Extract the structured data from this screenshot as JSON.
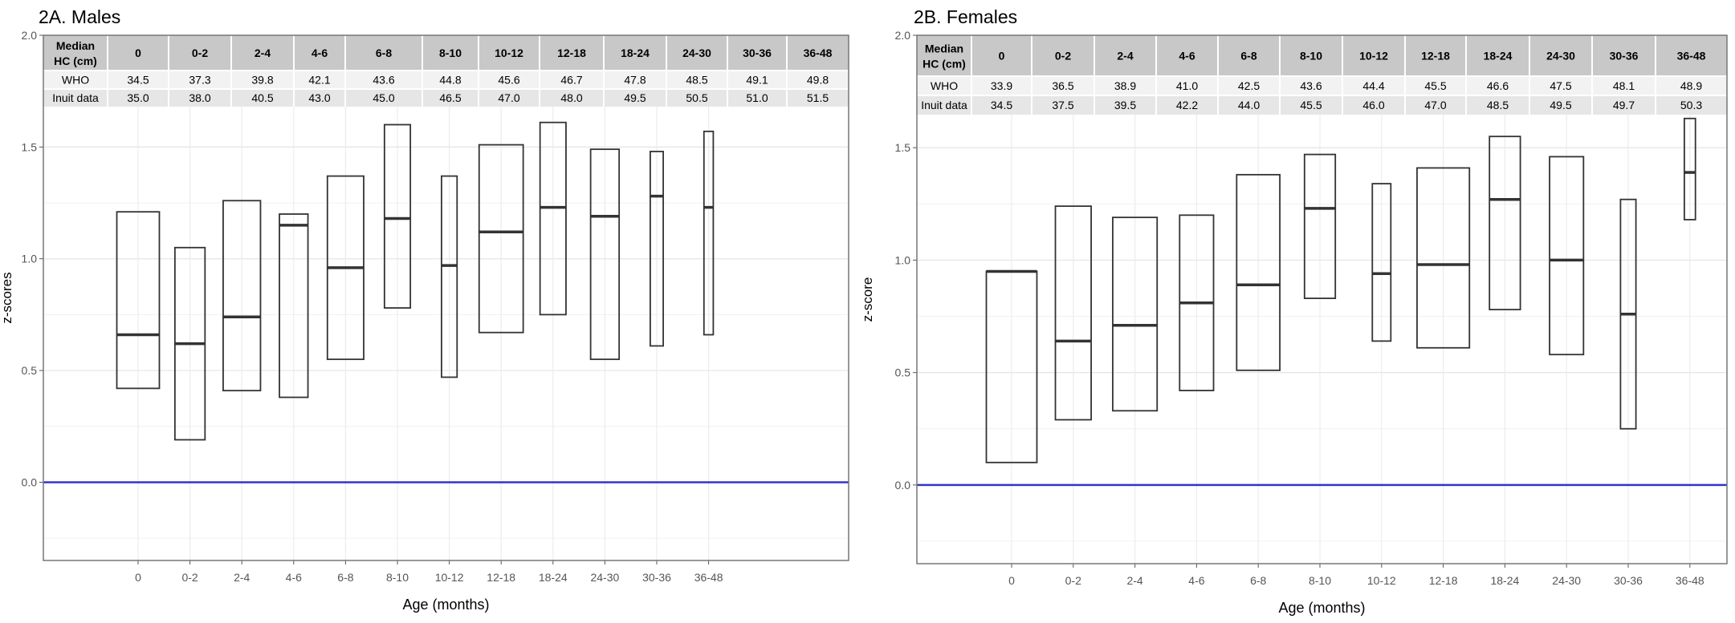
{
  "panels": [
    {
      "title": "2A. Males",
      "ylabel": "z-scores",
      "xlabel": "Age (months)",
      "table": {
        "header_label": [
          "Median",
          "HC (cm)"
        ],
        "rows": [
          {
            "label": "WHO",
            "values": [
              "34.5",
              "37.3",
              "39.8",
              "42.1",
              "43.6",
              "44.8",
              "45.6",
              "46.7",
              "47.8",
              "48.5",
              "49.1",
              "49.8"
            ]
          },
          {
            "label": "Inuit data",
            "values": [
              "35.0",
              "38.0",
              "40.5",
              "43.0",
              "45.0",
              "46.5",
              "47.0",
              "48.0",
              "49.5",
              "50.5",
              "51.0",
              "51.5"
            ]
          }
        ]
      }
    },
    {
      "title": "2B. Females",
      "ylabel": "z-score",
      "xlabel": "Age (months)",
      "table": {
        "header_label": [
          "Median",
          "HC (cm)"
        ],
        "rows": [
          {
            "label": "WHO",
            "values": [
              "33.9",
              "36.5",
              "38.9",
              "41.0",
              "42.5",
              "43.6",
              "44.4",
              "45.5",
              "46.6",
              "47.5",
              "48.1",
              "48.9"
            ]
          },
          {
            "label": "Inuit data",
            "values": [
              "34.5",
              "37.5",
              "39.5",
              "42.2",
              "44.0",
              "45.5",
              "46.0",
              "47.0",
              "48.5",
              "49.5",
              "49.7",
              "50.3"
            ]
          }
        ]
      }
    }
  ],
  "colors": {
    "reference_line": "#3333cc",
    "box": "#333333",
    "table_header_bg": "#c8c8c8",
    "table_row_bg": "#e6e6e6"
  },
  "chart_data": [
    {
      "type": "box",
      "title": "2A. Males",
      "xlabel": "Age (months)",
      "ylabel": "z-scores",
      "categories": [
        "0",
        "0-2",
        "2-4",
        "4-6",
        "6-8",
        "8-10",
        "10-12",
        "12-18",
        "18-24",
        "24-30",
        "30-36",
        "36-48"
      ],
      "ylim": [
        -0.35,
        2.0
      ],
      "yticks": [
        "0.0",
        "0.5",
        "1.0",
        "1.5",
        "2.0"
      ],
      "boxes": [
        {
          "low": 0.42,
          "median": 0.66,
          "high": 1.21
        },
        {
          "low": 0.19,
          "median": 0.62,
          "high": 1.05
        },
        {
          "low": 0.41,
          "median": 0.74,
          "high": 1.26
        },
        {
          "low": 0.38,
          "median": 1.15,
          "high": 1.2
        },
        {
          "low": 0.55,
          "median": 0.96,
          "high": 1.37
        },
        {
          "low": 0.78,
          "median": 1.18,
          "high": 1.6
        },
        {
          "low": 0.47,
          "median": 0.97,
          "high": 1.37
        },
        {
          "low": 0.67,
          "median": 1.12,
          "high": 1.51
        },
        {
          "low": 0.75,
          "median": 1.23,
          "high": 1.61
        },
        {
          "low": 0.55,
          "median": 1.19,
          "high": 1.49
        },
        {
          "low": 0.61,
          "median": 1.28,
          "high": 1.48
        },
        {
          "low": 0.66,
          "median": 1.23,
          "high": 1.57
        }
      ],
      "reference_line": 0.0,
      "grid": true
    },
    {
      "type": "box",
      "title": "2B. Females",
      "xlabel": "Age (months)",
      "ylabel": "z-score",
      "categories": [
        "0",
        "0-2",
        "2-4",
        "4-6",
        "6-8",
        "8-10",
        "10-12",
        "12-18",
        "18-24",
        "24-30",
        "30-36",
        "36-48"
      ],
      "ylim": [
        -0.35,
        2.0
      ],
      "yticks": [
        "0.0",
        "0.5",
        "1.0",
        "1.5",
        "2.0"
      ],
      "boxes": [
        {
          "low": 0.1,
          "median": 0.95,
          "high": 0.95
        },
        {
          "low": 0.29,
          "median": 0.64,
          "high": 1.24
        },
        {
          "low": 0.33,
          "median": 0.71,
          "high": 1.19
        },
        {
          "low": 0.42,
          "median": 0.81,
          "high": 1.2
        },
        {
          "low": 0.51,
          "median": 0.89,
          "high": 1.38
        },
        {
          "low": 0.83,
          "median": 1.23,
          "high": 1.47
        },
        {
          "low": 0.64,
          "median": 0.94,
          "high": 1.34
        },
        {
          "low": 0.61,
          "median": 0.98,
          "high": 1.41
        },
        {
          "low": 0.78,
          "median": 1.27,
          "high": 1.55
        },
        {
          "low": 0.58,
          "median": 1.0,
          "high": 1.46
        },
        {
          "low": 0.25,
          "median": 0.76,
          "high": 1.27
        },
        {
          "low": 1.18,
          "median": 1.39,
          "high": 1.63
        }
      ],
      "reference_line": 0.0,
      "grid": true
    }
  ]
}
